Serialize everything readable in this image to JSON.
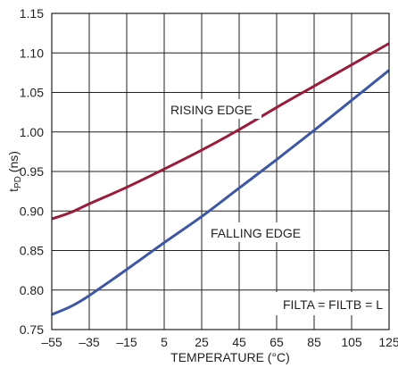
{
  "chart_data": {
    "type": "line",
    "xlabel": "TEMPERATURE (°C)",
    "ylabel_main": "t",
    "ylabel_sub": "PD",
    "ylabel_unit": " (ns)",
    "xlim": [
      -55,
      125
    ],
    "ylim": [
      0.75,
      1.15
    ],
    "x_ticks": [
      -55,
      -35,
      -15,
      5,
      25,
      45,
      65,
      85,
      105,
      125
    ],
    "x_tick_labels": [
      "–55",
      "–35",
      "–15",
      "5",
      "25",
      "45",
      "65",
      "85",
      "105",
      "125"
    ],
    "y_ticks": [
      0.75,
      0.8,
      0.85,
      0.9,
      0.95,
      1.0,
      1.05,
      1.1,
      1.15
    ],
    "y_tick_labels": [
      "0.75",
      "0.80",
      "0.85",
      "0.90",
      "0.95",
      "1.00",
      "1.05",
      "1.10",
      "1.15"
    ],
    "grid": true,
    "annotation": "FILTA = FILTB = L",
    "series": [
      {
        "name": "RISING EDGE",
        "color": "#9b1b3a",
        "x": [
          -55,
          -45,
          -35,
          -15,
          5,
          25,
          45,
          65,
          85,
          105,
          125
        ],
        "y": [
          0.89,
          0.898,
          0.909,
          0.93,
          0.953,
          0.977,
          1.003,
          1.031,
          1.058,
          1.085,
          1.112
        ]
      },
      {
        "name": "FALLING EDGE",
        "color": "#3d57a6",
        "x": [
          -55,
          -45,
          -35,
          -15,
          5,
          25,
          45,
          65,
          85,
          105,
          125
        ],
        "y": [
          0.769,
          0.779,
          0.793,
          0.826,
          0.86,
          0.893,
          0.929,
          0.965,
          1.002,
          1.04,
          1.078
        ]
      }
    ]
  }
}
